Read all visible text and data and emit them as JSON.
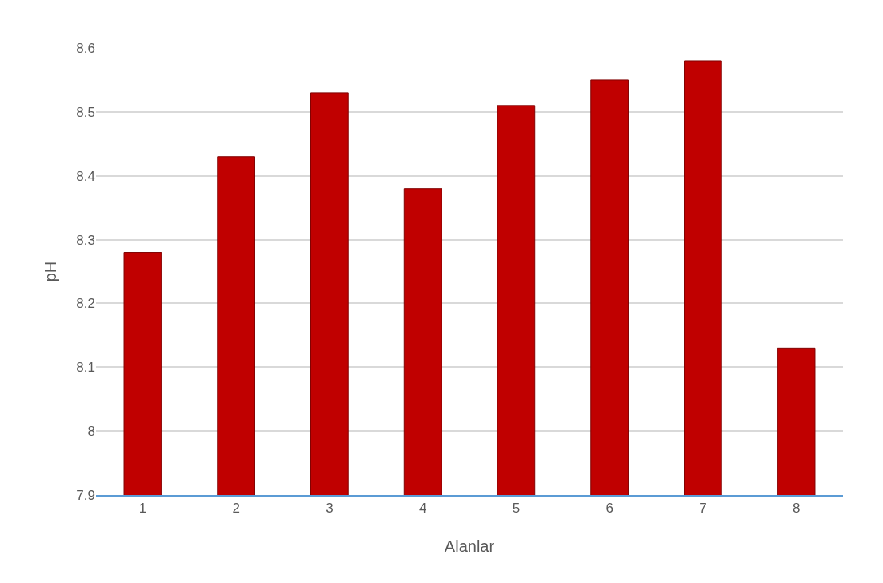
{
  "chart_data": {
    "type": "bar",
    "xlabel": "Alanlar",
    "ylabel": "pH",
    "categories": [
      "1",
      "2",
      "3",
      "4",
      "5",
      "6",
      "7",
      "8"
    ],
    "values": [
      8.28,
      8.43,
      8.53,
      8.38,
      8.51,
      8.55,
      8.58,
      8.13
    ],
    "color": "#c00000",
    "ylim": [
      7.9,
      8.6
    ],
    "yticks": [
      7.9,
      8,
      8.1,
      8.2,
      8.3,
      8.4,
      8.5,
      8.6
    ],
    "grid": "y"
  }
}
